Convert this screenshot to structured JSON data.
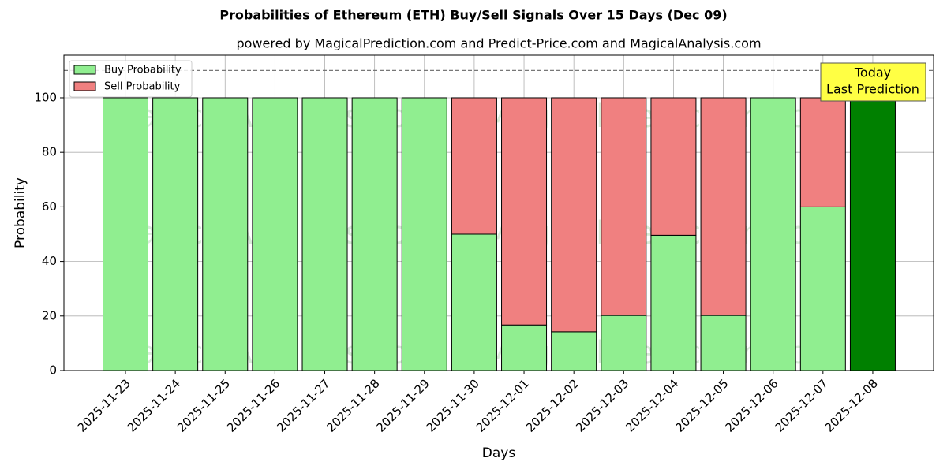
{
  "chart_data": {
    "type": "stacked_bar",
    "title": "Probabilities of Ethereum (ETH) Buy/Sell Signals Over 15 Days (Dec 09)",
    "subtitle": "powered by MagicalPrediction.com and Predict-Price.com and MagicalAnalysis.com",
    "x_label": "Days",
    "y_label": "Probability",
    "categories": [
      "2025-11-23",
      "2025-11-24",
      "2025-11-25",
      "2025-11-26",
      "2025-11-27",
      "2025-11-28",
      "2025-11-29",
      "2025-11-30",
      "2025-12-01",
      "2025-12-02",
      "2025-12-03",
      "2025-12-04",
      "2025-12-05",
      "2025-12-06",
      "2025-12-07",
      "2025-12-08"
    ],
    "series": [
      {
        "name": "Buy Probability",
        "color": "#90ee90",
        "values": [
          100,
          100,
          100,
          100,
          100,
          100,
          100,
          50,
          16.7,
          14.2,
          20.2,
          49.6,
          20.2,
          100,
          60,
          100
        ]
      },
      {
        "name": "Sell Probability",
        "color": "#f08080",
        "values": [
          0,
          0,
          0,
          0,
          0,
          0,
          0,
          50,
          83.3,
          85.8,
          79.8,
          50.4,
          79.8,
          0,
          40,
          0
        ]
      }
    ],
    "today_color": "#008000",
    "annotation": [
      "Today",
      "Last Prediction"
    ],
    "reference_line": 110,
    "watermarks": [
      "MagicalAnalysis.com",
      "MagicalPrediction.com"
    ],
    "ylim": [
      0,
      115.6
    ],
    "yticks": [
      0,
      20,
      40,
      60,
      80,
      100
    ],
    "grid": true,
    "legend": "upper-left"
  }
}
